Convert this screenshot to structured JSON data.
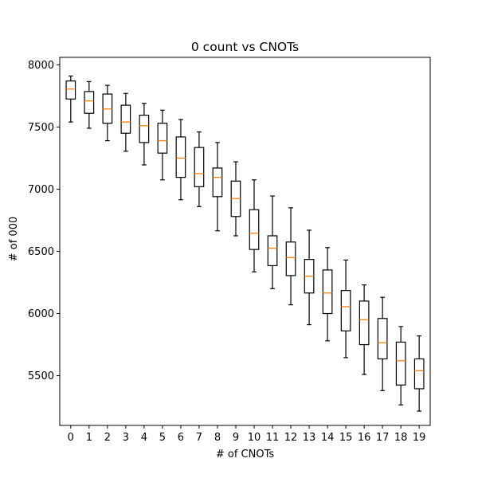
{
  "chart_data": {
    "type": "box",
    "title": "0 count vs CNOTs",
    "xlabel": "# of CNOTs",
    "ylabel": "# of 000",
    "ylim": [
      5100,
      8060
    ],
    "yticks": [
      5500,
      6000,
      6500,
      7000,
      7500,
      8000
    ],
    "grid": false,
    "categories": [
      "0",
      "1",
      "2",
      "3",
      "4",
      "5",
      "6",
      "7",
      "8",
      "9",
      "10",
      "11",
      "12",
      "13",
      "14",
      "15",
      "16",
      "17",
      "18",
      "19"
    ],
    "boxes": [
      {
        "whisker_low": 7540,
        "q1": 7725,
        "median": 7805,
        "q3": 7870,
        "whisker_high": 7910
      },
      {
        "whisker_low": 7490,
        "q1": 7610,
        "median": 7710,
        "q3": 7785,
        "whisker_high": 7865
      },
      {
        "whisker_low": 7390,
        "q1": 7530,
        "median": 7645,
        "q3": 7765,
        "whisker_high": 7835
      },
      {
        "whisker_low": 7305,
        "q1": 7450,
        "median": 7540,
        "q3": 7675,
        "whisker_high": 7770
      },
      {
        "whisker_low": 7195,
        "q1": 7375,
        "median": 7510,
        "q3": 7595,
        "whisker_high": 7690
      },
      {
        "whisker_low": 7075,
        "q1": 7290,
        "median": 7390,
        "q3": 7530,
        "whisker_high": 7635
      },
      {
        "whisker_low": 6915,
        "q1": 7095,
        "median": 7250,
        "q3": 7420,
        "whisker_high": 7560
      },
      {
        "whisker_low": 6860,
        "q1": 7020,
        "median": 7125,
        "q3": 7335,
        "whisker_high": 7460
      },
      {
        "whisker_low": 6665,
        "q1": 6940,
        "median": 7095,
        "q3": 7170,
        "whisker_high": 7375
      },
      {
        "whisker_low": 6625,
        "q1": 6780,
        "median": 6925,
        "q3": 7065,
        "whisker_high": 7220
      },
      {
        "whisker_low": 6335,
        "q1": 6515,
        "median": 6645,
        "q3": 6835,
        "whisker_high": 7075
      },
      {
        "whisker_low": 6200,
        "q1": 6385,
        "median": 6525,
        "q3": 6625,
        "whisker_high": 6945
      },
      {
        "whisker_low": 6070,
        "q1": 6305,
        "median": 6450,
        "q3": 6575,
        "whisker_high": 6850
      },
      {
        "whisker_low": 5910,
        "q1": 6165,
        "median": 6300,
        "q3": 6435,
        "whisker_high": 6670
      },
      {
        "whisker_low": 5780,
        "q1": 6000,
        "median": 6165,
        "q3": 6350,
        "whisker_high": 6530
      },
      {
        "whisker_low": 5645,
        "q1": 5860,
        "median": 6055,
        "q3": 6185,
        "whisker_high": 6430
      },
      {
        "whisker_low": 5510,
        "q1": 5750,
        "median": 5950,
        "q3": 6100,
        "whisker_high": 6230
      },
      {
        "whisker_low": 5380,
        "q1": 5635,
        "median": 5765,
        "q3": 5960,
        "whisker_high": 6130
      },
      {
        "whisker_low": 5265,
        "q1": 5425,
        "median": 5620,
        "q3": 5770,
        "whisker_high": 5895
      },
      {
        "whisker_low": 5215,
        "q1": 5395,
        "median": 5540,
        "q3": 5635,
        "whisker_high": 5820
      }
    ],
    "colors": {
      "box_edge": "#000000",
      "median": "#ff7f0e",
      "axes": "#000000",
      "background": "#ffffff"
    }
  }
}
